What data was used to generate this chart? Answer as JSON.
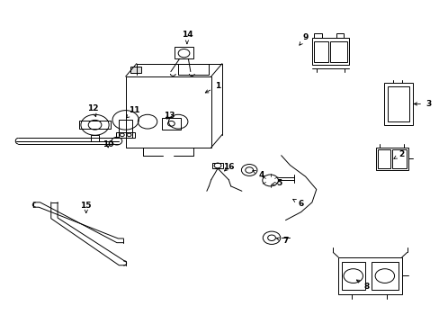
{
  "background_color": "#ffffff",
  "line_color": "#000000",
  "lw": 0.7,
  "parts_labels": {
    "1": [
      0.495,
      0.735,
      0.46,
      0.71
    ],
    "2": [
      0.915,
      0.525,
      0.89,
      0.505
    ],
    "3": [
      0.975,
      0.68,
      0.935,
      0.68
    ],
    "4": [
      0.595,
      0.46,
      0.573,
      0.475
    ],
    "5": [
      0.635,
      0.435,
      0.617,
      0.43
    ],
    "6": [
      0.685,
      0.37,
      0.66,
      0.39
    ],
    "7": [
      0.65,
      0.255,
      0.627,
      0.265
    ],
    "8": [
      0.835,
      0.115,
      0.805,
      0.14
    ],
    "9": [
      0.695,
      0.885,
      0.68,
      0.86
    ],
    "10": [
      0.245,
      0.555,
      0.245,
      0.535
    ],
    "11": [
      0.305,
      0.66,
      0.285,
      0.635
    ],
    "12": [
      0.21,
      0.665,
      0.218,
      0.638
    ],
    "13": [
      0.385,
      0.645,
      0.375,
      0.625
    ],
    "14": [
      0.425,
      0.895,
      0.425,
      0.865
    ],
    "15": [
      0.195,
      0.365,
      0.195,
      0.34
    ],
    "16": [
      0.52,
      0.485,
      0.505,
      0.465
    ]
  }
}
